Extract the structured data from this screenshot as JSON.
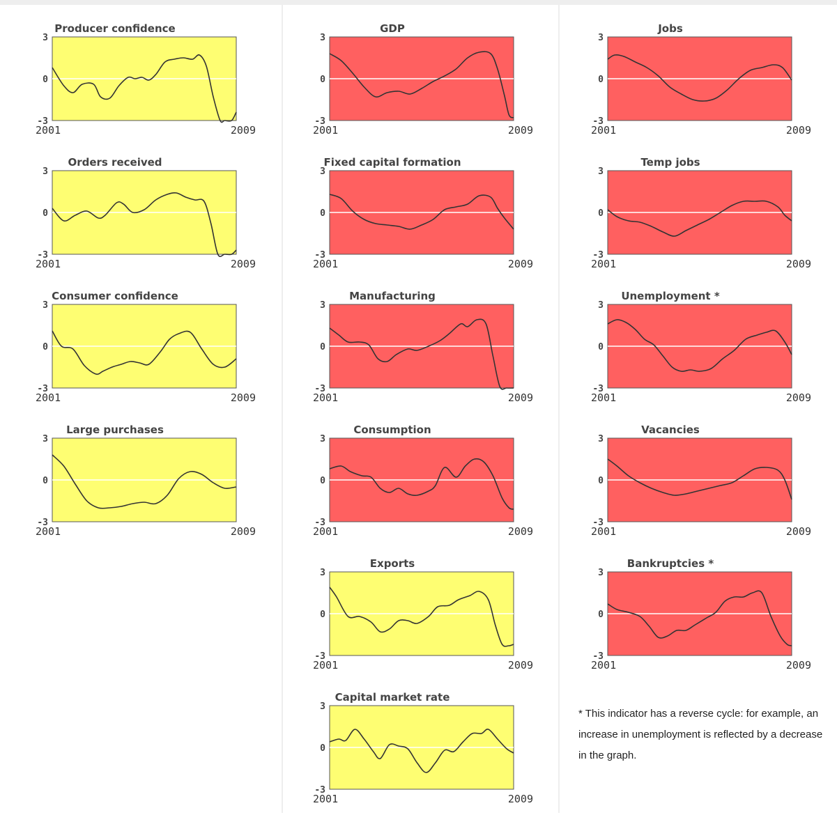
{
  "colors": {
    "leading": "#fefe72",
    "coincident": "#ff6060",
    "line": "#333333",
    "zero_line": "#ffffff",
    "frame": "#555555"
  },
  "footnote": "* This indicator has a reverse cycle: for example, an increase in unemployment is reflected by a decrease in the graph.",
  "chart_data": [
    {
      "type": "line",
      "title": "Producer confidence",
      "fill": "yellow",
      "column": 1,
      "row": 1,
      "ylim": [
        -3,
        3
      ],
      "y_ticks": [
        "3",
        "0",
        "-3"
      ],
      "x_ticks": [
        "2001",
        "2009"
      ],
      "xlim": [
        2001,
        2009
      ],
      "x": [
        2001,
        2001.5,
        2001.9,
        2002.3,
        2002.8,
        2003.1,
        2003.5,
        2003.9,
        2004.3,
        2004.6,
        2004.9,
        2005.2,
        2005.5,
        2005.9,
        2006.3,
        2006.7,
        2007.1,
        2007.4,
        2007.7,
        2008.0,
        2008.3,
        2008.5,
        2008.8,
        2009
      ],
      "y": [
        0.8,
        -0.5,
        -1.0,
        -0.4,
        -0.4,
        -1.3,
        -1.4,
        -0.5,
        0.1,
        0.0,
        0.1,
        -0.1,
        0.3,
        1.2,
        1.4,
        1.5,
        1.4,
        1.7,
        0.9,
        -1.3,
        -3.0,
        -3.0,
        -3.0,
        -2.4
      ]
    },
    {
      "type": "line",
      "title": "Orders received",
      "fill": "yellow",
      "column": 1,
      "row": 2,
      "ylim": [
        -3,
        3
      ],
      "y_ticks": [
        "3",
        "0",
        "-3"
      ],
      "x_ticks": [
        "2001",
        "2009"
      ],
      "xlim": [
        2001,
        2009
      ],
      "x": [
        2001,
        2001.5,
        2002.0,
        2002.5,
        2003.0,
        2003.3,
        2003.8,
        2004.1,
        2004.5,
        2005.0,
        2005.5,
        2006.0,
        2006.4,
        2006.8,
        2007.2,
        2007.6,
        2007.9,
        2008.2,
        2008.5,
        2008.8,
        2009
      ],
      "y": [
        0.3,
        -0.6,
        -0.2,
        0.1,
        -0.4,
        -0.2,
        0.7,
        0.6,
        0.0,
        0.2,
        0.9,
        1.3,
        1.4,
        1.1,
        0.9,
        0.8,
        -0.8,
        -3.0,
        -3.0,
        -3.0,
        -2.7
      ]
    },
    {
      "type": "line",
      "title": "Consumer confidence",
      "fill": "yellow",
      "column": 1,
      "row": 3,
      "ylim": [
        -3,
        3
      ],
      "y_ticks": [
        "3",
        "0",
        "-3"
      ],
      "x_ticks": [
        "2001",
        "2009"
      ],
      "xlim": [
        2001,
        2009
      ],
      "x": [
        2001,
        2001.4,
        2001.9,
        2002.4,
        2002.9,
        2003.2,
        2003.6,
        2004.0,
        2004.4,
        2004.8,
        2005.2,
        2005.7,
        2006.1,
        2006.5,
        2007.0,
        2007.5,
        2008.0,
        2008.5,
        2009
      ],
      "y": [
        1.1,
        0.0,
        -0.2,
        -1.4,
        -2.0,
        -1.8,
        -1.5,
        -1.3,
        -1.1,
        -1.2,
        -1.3,
        -0.4,
        0.5,
        0.9,
        1.0,
        -0.2,
        -1.3,
        -1.5,
        -0.9
      ]
    },
    {
      "type": "line",
      "title": "Large purchases",
      "fill": "yellow",
      "column": 1,
      "row": 4,
      "ylim": [
        -3,
        3
      ],
      "y_ticks": [
        "3",
        "0",
        "-3"
      ],
      "x_ticks": [
        "2001",
        "2009"
      ],
      "xlim": [
        2001,
        2009
      ],
      "x": [
        2001,
        2001.5,
        2002.0,
        2002.5,
        2003.0,
        2003.5,
        2004.0,
        2004.5,
        2005.0,
        2005.5,
        2006.0,
        2006.5,
        2007.0,
        2007.5,
        2008.0,
        2008.5,
        2009
      ],
      "y": [
        1.8,
        1.0,
        -0.3,
        -1.5,
        -2.0,
        -2.0,
        -1.9,
        -1.7,
        -1.6,
        -1.7,
        -1.1,
        0.1,
        0.6,
        0.4,
        -0.2,
        -0.6,
        -0.5
      ]
    },
    {
      "type": "line",
      "title": "GDP",
      "fill": "red",
      "column": 2,
      "row": 1,
      "ylim": [
        -3,
        3
      ],
      "y_ticks": [
        "3",
        "0",
        "-3"
      ],
      "x_ticks": [
        "2001",
        "2009"
      ],
      "xlim": [
        2001,
        2009
      ],
      "x": [
        2001,
        2001.5,
        2002.0,
        2002.5,
        2003.0,
        2003.5,
        2004.0,
        2004.5,
        2005.0,
        2005.5,
        2006.0,
        2006.5,
        2007.0,
        2007.5,
        2008.0,
        2008.3,
        2008.6,
        2008.8,
        2009
      ],
      "y": [
        1.8,
        1.3,
        0.4,
        -0.6,
        -1.3,
        -1.0,
        -0.9,
        -1.1,
        -0.7,
        -0.2,
        0.2,
        0.7,
        1.5,
        1.9,
        1.8,
        0.7,
        -1.2,
        -2.6,
        -2.8
      ]
    },
    {
      "type": "line",
      "title": "Fixed capital formation",
      "fill": "red",
      "column": 2,
      "row": 2,
      "ylim": [
        -3,
        3
      ],
      "y_ticks": [
        "3",
        "0",
        "-3"
      ],
      "x_ticks": [
        "2001",
        "2009"
      ],
      "xlim": [
        2001,
        2009
      ],
      "x": [
        2001,
        2001.5,
        2002.0,
        2002.5,
        2003.0,
        2003.5,
        2004.0,
        2004.5,
        2005.0,
        2005.5,
        2006.0,
        2006.5,
        2007.0,
        2007.5,
        2008.0,
        2008.3,
        2008.6,
        2009
      ],
      "y": [
        1.3,
        1.0,
        0.1,
        -0.5,
        -0.8,
        -0.9,
        -1.0,
        -1.2,
        -0.9,
        -0.5,
        0.2,
        0.4,
        0.6,
        1.2,
        1.1,
        0.3,
        -0.4,
        -1.2
      ]
    },
    {
      "type": "line",
      "title": "Manufacturing",
      "fill": "red",
      "column": 2,
      "row": 3,
      "ylim": [
        -3,
        3
      ],
      "y_ticks": [
        "3",
        "0",
        "-3"
      ],
      "x_ticks": [
        "2001",
        "2009"
      ],
      "xlim": [
        2001,
        2009
      ],
      "x": [
        2001,
        2001.4,
        2001.8,
        2002.3,
        2002.7,
        2003.1,
        2003.5,
        2003.9,
        2004.4,
        2004.8,
        2005.3,
        2005.8,
        2006.2,
        2006.7,
        2007.0,
        2007.4,
        2007.8,
        2008.1,
        2008.4,
        2008.7,
        2009
      ],
      "y": [
        1.3,
        0.8,
        0.3,
        0.3,
        0.1,
        -0.9,
        -1.1,
        -0.6,
        -0.2,
        -0.3,
        0.0,
        0.4,
        0.9,
        1.6,
        1.4,
        1.9,
        1.6,
        -0.7,
        -2.9,
        -3.0,
        -3.0
      ]
    },
    {
      "type": "line",
      "title": "Consumption",
      "fill": "red",
      "column": 2,
      "row": 4,
      "ylim": [
        -3,
        3
      ],
      "y_ticks": [
        "3",
        "0",
        "-3"
      ],
      "x_ticks": [
        "2001",
        "2009"
      ],
      "xlim": [
        2001,
        2009
      ],
      "x": [
        2001,
        2001.5,
        2001.9,
        2002.4,
        2002.8,
        2003.2,
        2003.6,
        2004.0,
        2004.4,
        2004.8,
        2005.3,
        2005.6,
        2006.0,
        2006.5,
        2006.9,
        2007.3,
        2007.7,
        2008.1,
        2008.5,
        2008.8,
        2009
      ],
      "y": [
        0.8,
        1.0,
        0.6,
        0.3,
        0.2,
        -0.6,
        -0.9,
        -0.6,
        -1.0,
        -1.1,
        -0.8,
        -0.4,
        0.9,
        0.2,
        1.0,
        1.5,
        1.3,
        0.3,
        -1.3,
        -2.0,
        -2.1
      ]
    },
    {
      "type": "line",
      "title": "Exports",
      "fill": "yellow",
      "column": 2,
      "row": 5,
      "ylim": [
        -3,
        3
      ],
      "y_ticks": [
        "3",
        "0",
        "-3"
      ],
      "x_ticks": [
        "2001",
        "2009"
      ],
      "xlim": [
        2001,
        2009
      ],
      "x": [
        2001,
        2001.3,
        2001.8,
        2002.3,
        2002.8,
        2003.2,
        2003.6,
        2004.0,
        2004.4,
        2004.8,
        2005.3,
        2005.7,
        2006.2,
        2006.6,
        2007.1,
        2007.5,
        2007.9,
        2008.2,
        2008.5,
        2008.8,
        2009
      ],
      "y": [
        1.9,
        1.2,
        -0.2,
        -0.2,
        -0.6,
        -1.3,
        -1.1,
        -0.5,
        -0.5,
        -0.7,
        -0.2,
        0.5,
        0.6,
        1.0,
        1.3,
        1.6,
        1.0,
        -0.8,
        -2.2,
        -2.3,
        -2.2
      ]
    },
    {
      "type": "line",
      "title": "Capital market rate",
      "fill": "yellow",
      "column": 2,
      "row": 6,
      "ylim": [
        -3,
        3
      ],
      "y_ticks": [
        "3",
        "0",
        "-3"
      ],
      "x_ticks": [
        "2001",
        "2009"
      ],
      "xlim": [
        2001,
        2009
      ],
      "x": [
        2001,
        2001.4,
        2001.7,
        2002.1,
        2002.5,
        2002.9,
        2003.2,
        2003.6,
        2004.0,
        2004.4,
        2004.8,
        2005.2,
        2005.6,
        2006.0,
        2006.4,
        2006.8,
        2007.2,
        2007.6,
        2007.9,
        2008.3,
        2008.7,
        2009
      ],
      "y": [
        0.4,
        0.6,
        0.5,
        1.3,
        0.6,
        -0.3,
        -0.8,
        0.2,
        0.1,
        -0.1,
        -1.1,
        -1.8,
        -1.1,
        -0.2,
        -0.3,
        0.4,
        1.0,
        1.0,
        1.3,
        0.6,
        -0.1,
        -0.4
      ]
    },
    {
      "type": "line",
      "title": "Jobs",
      "fill": "red",
      "column": 3,
      "row": 1,
      "ylim": [
        -3,
        3
      ],
      "y_ticks": [
        "3",
        "0",
        "-3"
      ],
      "x_ticks": [
        "2001",
        "2009"
      ],
      "xlim": [
        2001,
        2009
      ],
      "x": [
        2001,
        2001.3,
        2001.7,
        2002.2,
        2002.7,
        2003.2,
        2003.7,
        2004.2,
        2004.7,
        2005.2,
        2005.7,
        2006.2,
        2006.7,
        2007.2,
        2007.7,
        2008.2,
        2008.6,
        2009
      ],
      "y": [
        1.4,
        1.7,
        1.6,
        1.2,
        0.8,
        0.2,
        -0.6,
        -1.1,
        -1.5,
        -1.6,
        -1.4,
        -0.8,
        0.0,
        0.6,
        0.8,
        1.0,
        0.8,
        -0.1
      ]
    },
    {
      "type": "line",
      "title": "Temp jobs",
      "fill": "red",
      "column": 3,
      "row": 2,
      "ylim": [
        -3,
        3
      ],
      "y_ticks": [
        "3",
        "0",
        "-3"
      ],
      "x_ticks": [
        "2001",
        "2009"
      ],
      "xlim": [
        2001,
        2009
      ],
      "x": [
        2001,
        2001.4,
        2001.9,
        2002.4,
        2002.9,
        2003.4,
        2003.9,
        2004.4,
        2004.9,
        2005.4,
        2005.9,
        2006.4,
        2006.9,
        2007.4,
        2007.9,
        2008.4,
        2008.7,
        2009
      ],
      "y": [
        0.2,
        -0.3,
        -0.6,
        -0.7,
        -1.0,
        -1.4,
        -1.7,
        -1.3,
        -0.9,
        -0.5,
        0.0,
        0.5,
        0.8,
        0.8,
        0.8,
        0.4,
        -0.2,
        -0.6
      ]
    },
    {
      "type": "line",
      "title": "Unemployment *",
      "fill": "red",
      "column": 3,
      "row": 3,
      "ylim": [
        -3,
        3
      ],
      "y_ticks": [
        "3",
        "0",
        "-3"
      ],
      "x_ticks": [
        "2001",
        "2009"
      ],
      "xlim": [
        2001,
        2009
      ],
      "x": [
        2001,
        2001.4,
        2001.8,
        2002.2,
        2002.6,
        2003.0,
        2003.4,
        2003.8,
        2004.2,
        2004.6,
        2005.0,
        2005.5,
        2006.0,
        2006.5,
        2007.0,
        2007.5,
        2007.9,
        2008.3,
        2008.7,
        2009
      ],
      "y": [
        1.6,
        1.9,
        1.7,
        1.2,
        0.5,
        0.1,
        -0.7,
        -1.5,
        -1.8,
        -1.7,
        -1.8,
        -1.6,
        -0.9,
        -0.3,
        0.5,
        0.8,
        1.0,
        1.1,
        0.3,
        -0.6
      ]
    },
    {
      "type": "line",
      "title": "Vacancies",
      "fill": "red",
      "column": 3,
      "row": 4,
      "ylim": [
        -3,
        3
      ],
      "y_ticks": [
        "3",
        "0",
        "-3"
      ],
      "x_ticks": [
        "2001",
        "2009"
      ],
      "xlim": [
        2001,
        2009
      ],
      "x": [
        2001,
        2001.4,
        2001.9,
        2002.4,
        2002.9,
        2003.4,
        2003.9,
        2004.4,
        2004.9,
        2005.4,
        2005.9,
        2006.4,
        2006.9,
        2007.4,
        2007.9,
        2008.4,
        2008.7,
        2009
      ],
      "y": [
        1.5,
        1.0,
        0.3,
        -0.2,
        -0.6,
        -0.9,
        -1.1,
        -1.0,
        -0.8,
        -0.6,
        -0.4,
        -0.2,
        0.3,
        0.8,
        0.9,
        0.7,
        0.0,
        -1.4
      ]
    },
    {
      "type": "line",
      "title": "Bankruptcies *",
      "fill": "red",
      "column": 3,
      "row": 5,
      "ylim": [
        -3,
        3
      ],
      "y_ticks": [
        "3",
        "0",
        "-3"
      ],
      "x_ticks": [
        "2001",
        "2009"
      ],
      "xlim": [
        2001,
        2009
      ],
      "x": [
        2001,
        2001.4,
        2001.9,
        2002.4,
        2002.8,
        2003.2,
        2003.6,
        2004.0,
        2004.4,
        2004.8,
        2005.3,
        2005.7,
        2006.1,
        2006.5,
        2006.9,
        2007.3,
        2007.7,
        2008.1,
        2008.5,
        2008.8,
        2009
      ],
      "y": [
        0.7,
        0.3,
        0.1,
        -0.2,
        -0.9,
        -1.7,
        -1.6,
        -1.2,
        -1.2,
        -0.8,
        -0.3,
        0.1,
        0.9,
        1.2,
        1.2,
        1.5,
        1.5,
        -0.2,
        -1.6,
        -2.2,
        -2.3
      ]
    }
  ]
}
